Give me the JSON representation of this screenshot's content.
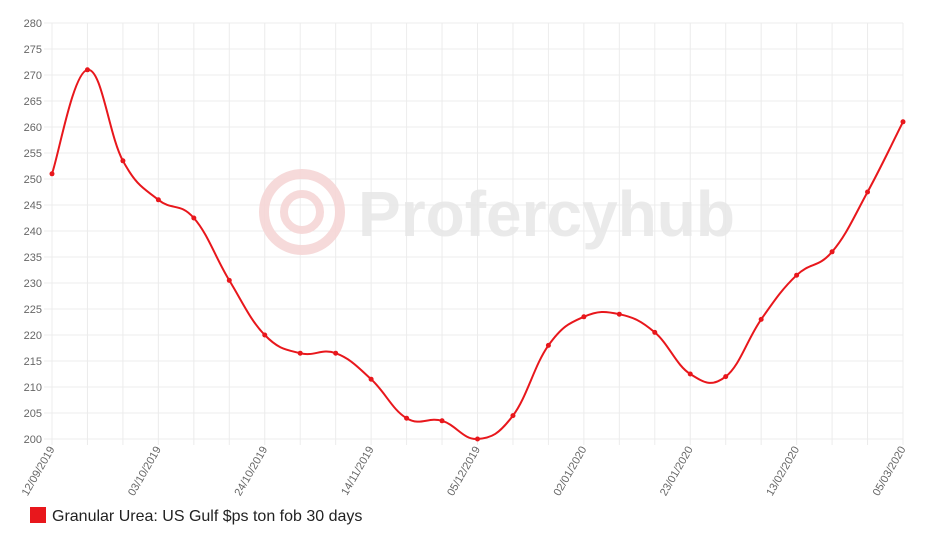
{
  "chart_data": {
    "type": "line",
    "watermark": "Profercyhub",
    "categories": [
      "12/09/2019",
      null,
      null,
      "03/10/2019",
      null,
      null,
      "24/10/2019",
      null,
      null,
      "14/11/2019",
      null,
      null,
      "05/12/2019",
      null,
      null,
      "02/01/2020",
      null,
      null,
      "23/01/2020",
      null,
      null,
      "13/02/2020",
      null,
      null,
      "05/03/2020"
    ],
    "series": [
      {
        "name": "Granular Urea: US Gulf $ps ton fob 30 days",
        "color": "#e8171c",
        "values": [
          251,
          271,
          253.5,
          246,
          242.5,
          230.5,
          220,
          216.5,
          216.5,
          211.5,
          204,
          203.5,
          200,
          204.5,
          218,
          223.5,
          224,
          220.5,
          212.5,
          212,
          223,
          231.5,
          236,
          247.5,
          261
        ]
      }
    ],
    "ylim": [
      200,
      280
    ],
    "yticks": [
      200,
      205,
      210,
      215,
      220,
      225,
      230,
      235,
      240,
      245,
      250,
      255,
      260,
      265,
      270,
      275,
      280
    ],
    "grid": true,
    "legend": "bottom-left"
  }
}
